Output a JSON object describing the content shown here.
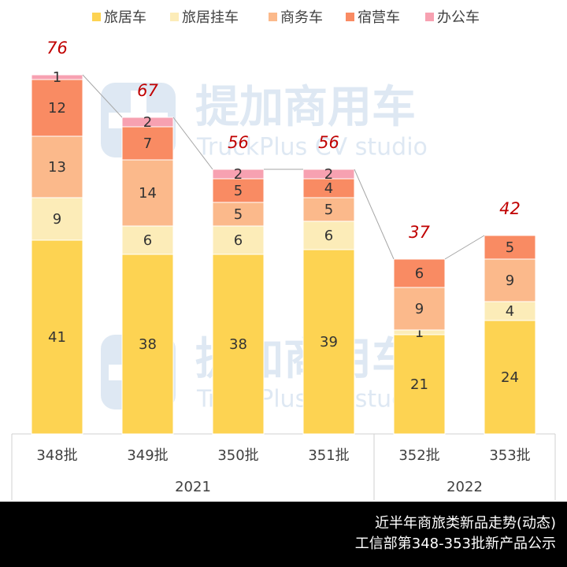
{
  "chart_data": {
    "type": "stacked_bar",
    "categories": [
      "348批",
      "349批",
      "350批",
      "351批",
      "352批",
      "353批"
    ],
    "category_groups": [
      "2021",
      "2021",
      "2021",
      "2021",
      "2022",
      "2022"
    ],
    "series": [
      {
        "name": "旅居车",
        "color": "#fdd352",
        "values": [
          41,
          38,
          38,
          39,
          21,
          24
        ]
      },
      {
        "name": "旅居挂车",
        "color": "#fcecb8",
        "values": [
          9,
          6,
          6,
          6,
          1,
          4
        ]
      },
      {
        "name": "商务车",
        "color": "#fbb98b",
        "values": [
          13,
          14,
          5,
          5,
          9,
          9
        ]
      },
      {
        "name": "宿营车",
        "color": "#f98b63",
        "values": [
          12,
          7,
          5,
          4,
          6,
          5
        ]
      },
      {
        "name": "办公车",
        "color": "#f7a1b1",
        "values": [
          1,
          2,
          2,
          2,
          null,
          null
        ]
      }
    ],
    "totals": [
      76,
      67,
      56,
      56,
      37,
      42
    ],
    "total_color": "#c00000",
    "ylim": [
      0,
      80
    ],
    "legend": "top"
  },
  "watermark": {
    "title": "提加商用车",
    "subtitle": "TruckPlus CV studio"
  },
  "footer": [
    "近半年商旅类新品走势(动态)",
    "工信部第348-353批新产品公示"
  ]
}
